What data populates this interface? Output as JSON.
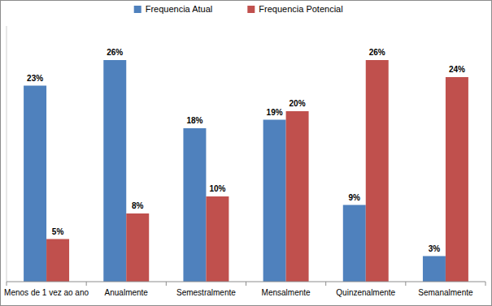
{
  "chart_data": {
    "type": "bar",
    "categories": [
      "Menos de 1 vez ao ano",
      "Anualmente",
      "Semestralmente",
      "Mensalmente",
      "Quinzenalmente",
      "Semanalmente"
    ],
    "series": [
      {
        "name": "Frequencia Atual",
        "color": "#4f81bd",
        "values": [
          23,
          26,
          18,
          19,
          9,
          3
        ],
        "value_labels": [
          "23%",
          "26%",
          "18%",
          "19%",
          "9%",
          "3%"
        ]
      },
      {
        "name": "Frequencia Potencial",
        "color": "#c0504d",
        "values": [
          5,
          8,
          10,
          20,
          26,
          24
        ],
        "value_labels": [
          "5%",
          "8%",
          "10%",
          "20%",
          "26%",
          "24%"
        ]
      }
    ],
    "ylim": [
      0,
      30
    ],
    "grid": false,
    "legend": "top",
    "data_labels": true,
    "tick_labels": "x"
  }
}
